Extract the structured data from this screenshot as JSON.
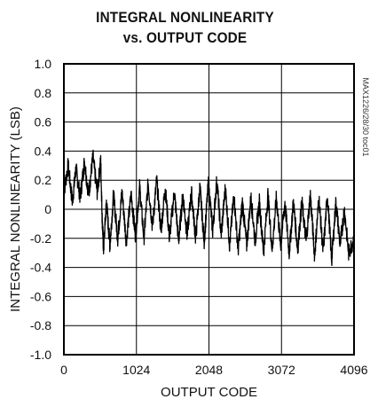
{
  "chart_data": {
    "type": "line",
    "title_line1": "INTEGRAL NONLINEARITY",
    "title_line2": "vs. OUTPUT CODE",
    "xlabel": "OUTPUT CODE",
    "ylabel": "INTEGRAL NONLINEARITY (LSB)",
    "side_label": "MAX1226/28/30 toc01",
    "xlim": [
      0,
      4096
    ],
    "ylim": [
      -1.0,
      1.0
    ],
    "x_ticks": [
      0,
      1024,
      2048,
      3072,
      4096
    ],
    "x_tick_labels": [
      "0",
      "1024",
      "2048",
      "3072",
      "4096"
    ],
    "y_ticks": [
      1.0,
      0.8,
      0.6,
      0.4,
      0.2,
      0,
      -0.2,
      -0.4,
      -0.6,
      -0.8,
      -1.0
    ],
    "y_tick_labels": [
      "1.0",
      "0.8",
      "0.6",
      "0.4",
      "0.2",
      "0",
      "-0.2",
      "-0.4",
      "-0.6",
      "-0.8",
      "-1.0"
    ],
    "grid": true,
    "series": [
      {
        "color": "#000000",
        "x": [
          0,
          60,
          120,
          170,
          230,
          290,
          350,
          410,
          470,
          520,
          540,
          560,
          600,
          650,
          700,
          760,
          820,
          880,
          950,
          1010,
          1070,
          1130,
          1190,
          1250,
          1310,
          1370,
          1430,
          1490,
          1560,
          1620,
          1680,
          1740,
          1800,
          1860,
          1920,
          1980,
          2040,
          2100,
          2160,
          2220,
          2280,
          2340,
          2400,
          2460,
          2520,
          2580,
          2640,
          2700,
          2760,
          2820,
          2880,
          2940,
          3000,
          3060,
          3120,
          3180,
          3240,
          3300,
          3360,
          3420,
          3480,
          3540,
          3600,
          3660,
          3720,
          3780,
          3840,
          3900,
          3960,
          4020,
          4096
        ],
        "y": [
          0.12,
          0.3,
          0.05,
          0.28,
          0.08,
          0.33,
          0.1,
          0.36,
          0.12,
          0.33,
          -0.05,
          -0.28,
          0.05,
          -0.25,
          0.1,
          -0.2,
          0.12,
          -0.22,
          0.1,
          -0.18,
          0.15,
          -0.2,
          0.18,
          -0.12,
          0.2,
          -0.15,
          0.15,
          -0.2,
          0.12,
          -0.22,
          0.1,
          -0.18,
          0.12,
          -0.2,
          0.15,
          -0.22,
          0.18,
          -0.15,
          0.2,
          -0.18,
          0.15,
          -0.25,
          0.1,
          -0.28,
          0.05,
          -0.25,
          0.08,
          -0.22,
          0.05,
          -0.3,
          0.1,
          -0.28,
          0.08,
          -0.25,
          0.05,
          -0.3,
          0.05,
          -0.28,
          0.05,
          -0.22,
          0.1,
          -0.32,
          0.08,
          -0.3,
          0.1,
          -0.35,
          0.05,
          -0.25,
          0.0,
          -0.3,
          -0.2
        ]
      }
    ]
  }
}
